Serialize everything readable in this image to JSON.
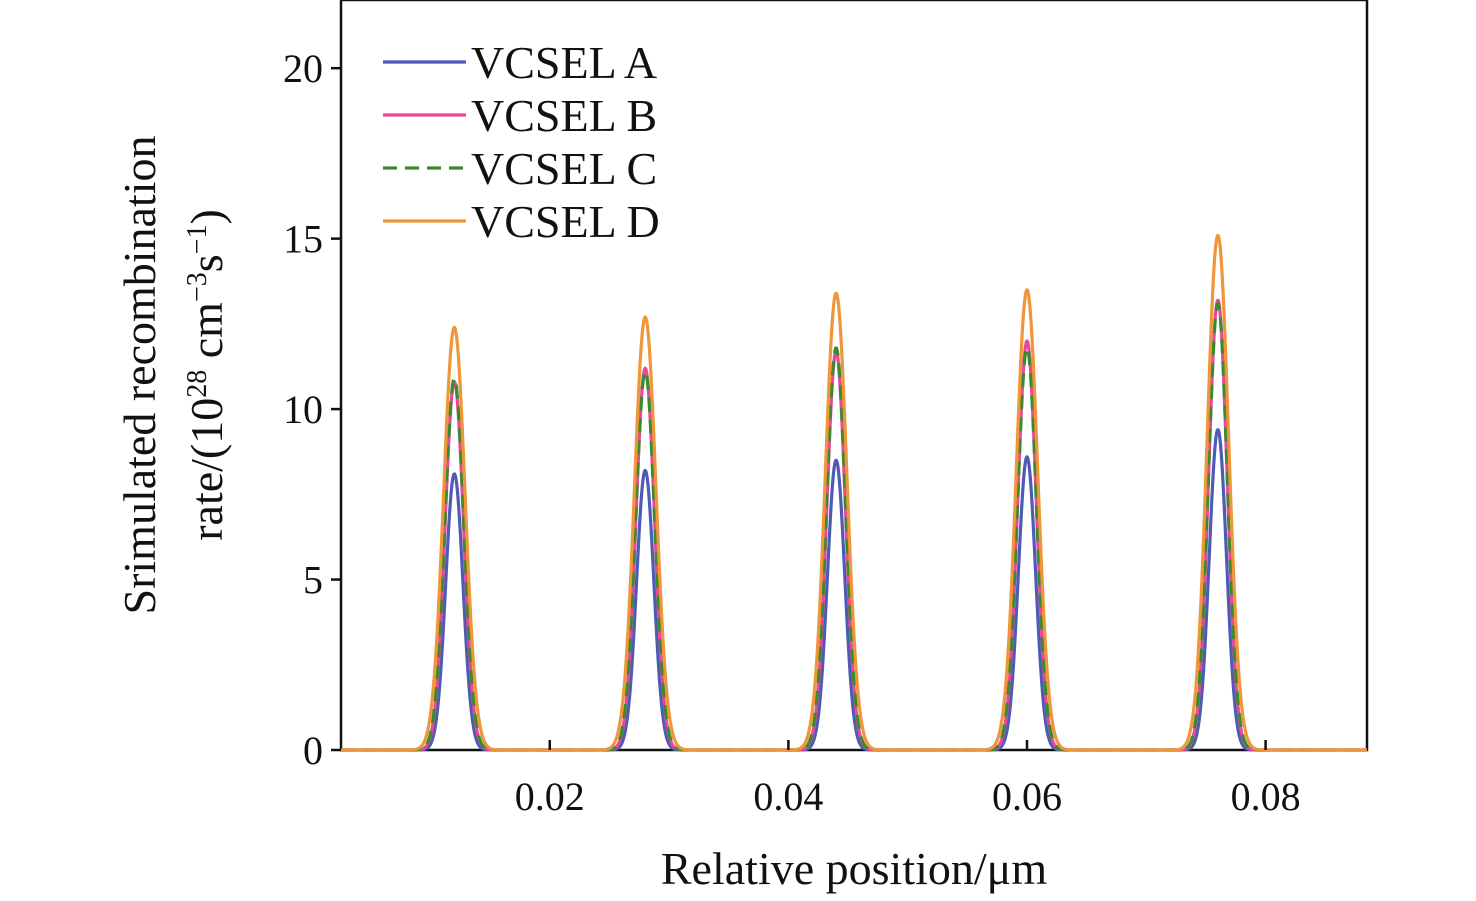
{
  "chart_data": {
    "type": "line",
    "title": "",
    "xlabel": "Relative position/μm",
    "ylabel_line1": "Srimulated recombination",
    "ylabel_line2_prefix": "rate/(10",
    "ylabel_line2_sup1": "28",
    "ylabel_line2_mid": " cm",
    "ylabel_line2_sup2": "−3",
    "ylabel_line2_mid2": "s",
    "ylabel_line2_sup3": "−1",
    "ylabel_line2_suffix": ")",
    "xlim": [
      0.0025,
      0.0885
    ],
    "ylim": [
      0,
      22
    ],
    "xticks": [
      0.02,
      0.04,
      0.06,
      0.08
    ],
    "xtick_labels": [
      "0.02",
      "0.04",
      "0.06",
      "0.08"
    ],
    "yticks": [
      0,
      5,
      10,
      15,
      20
    ],
    "ytick_labels": [
      "0",
      "5",
      "10",
      "15",
      "20"
    ],
    "grid": false,
    "legend_position": "top-left",
    "peak_centers": [
      0.012,
      0.028,
      0.044,
      0.06,
      0.076
    ],
    "series": [
      {
        "name": "VCSEL A",
        "color": "#4e5bb5",
        "dash": "solid",
        "sigma": 0.00072,
        "peaks": [
          8.1,
          8.2,
          8.5,
          8.6,
          9.4
        ]
      },
      {
        "name": "VCSEL B",
        "color": "#e8489a",
        "dash": "solid",
        "sigma": 0.00078,
        "peaks": [
          10.8,
          11.2,
          11.7,
          12.0,
          13.2
        ]
      },
      {
        "name": "VCSEL C",
        "color": "#3a8a2e",
        "dash": "dashed",
        "sigma": 0.0008,
        "peaks": [
          10.9,
          11.1,
          11.8,
          11.8,
          13.1
        ]
      },
      {
        "name": "VCSEL D",
        "color": "#f0963a",
        "dash": "solid",
        "sigma": 0.0009,
        "peaks": [
          12.4,
          12.7,
          13.4,
          13.5,
          15.1
        ]
      }
    ]
  }
}
